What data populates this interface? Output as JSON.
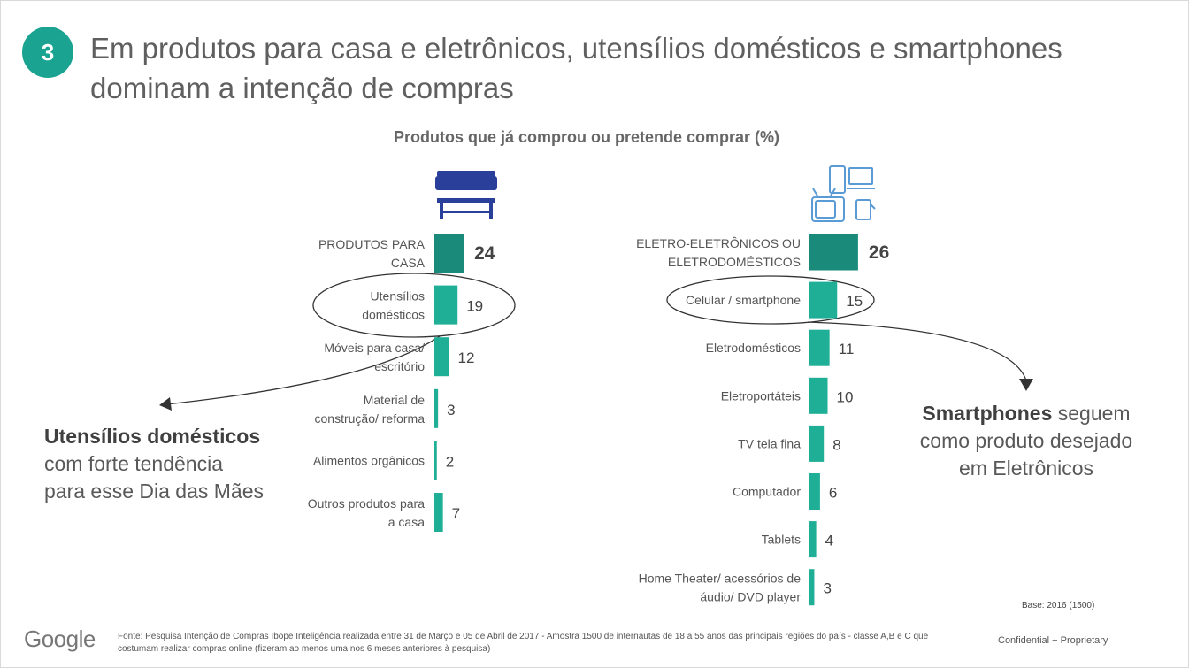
{
  "slide": {
    "number": "3",
    "title_line1": "Em produtos para casa e eletrônicos, utensílios domésticos e smartphones",
    "title_line2": "dominam a intenção de compras",
    "subtitle": "Produtos que já comprou ou pretende comprar (%)"
  },
  "callouts": {
    "left_bold": "Utensílios domésticos",
    "left_line2": "com forte tendência",
    "left_line3": "para esse Dia das Mães",
    "right_bold": "Smartphones",
    "right_rest": " seguem",
    "right_line2": "como produto desejado",
    "right_line3": "em Eletrônicos"
  },
  "footer": {
    "logo": "Google",
    "source_line1": "Fonte: Pesquisa Intenção de Compras Ibope Inteligência realizada entre 31 de Março e 05 de Abril de 2017 - Amostra 1500 de internautas de 18 a 55 anos das principais regiões do país - classe A,B e C que",
    "source_line2": "costumam realizar compras online (fizeram ao menos uma nos 6 meses anteriores à pesquisa)",
    "base": "Base: 2016 (1500)",
    "confidential": "Confidential + Proprietary"
  },
  "colors": {
    "bar_main": "#1a8a7a",
    "bar_secondary": "#1fae96",
    "badge": "#1aa391",
    "sofa_icon": "#2a3f9a",
    "electronics_icon": "#5b9bd5"
  },
  "icons": [
    "sofa-table-icon",
    "electronics-devices-icon"
  ],
  "chart_data": [
    {
      "type": "bar",
      "orientation": "horizontal",
      "categories": [
        "PRODUTOS PARA CASA",
        "Utensílios domésticos",
        "Móveis para casa/ escritório",
        "Material de construção/ reforma",
        "Alimentos orgânicos",
        "Outros produtos para a casa"
      ],
      "label_lines": [
        [
          "PRODUTOS PARA",
          "CASA"
        ],
        [
          "Utensílios",
          "domésticos"
        ],
        [
          "Móveis para casa/",
          "escritório"
        ],
        [
          "Material de",
          "construção/ reforma"
        ],
        [
          "Alimentos orgânicos"
        ],
        [
          "Outros produtos para",
          "a casa"
        ]
      ],
      "values": [
        24,
        19,
        12,
        3,
        2,
        7
      ],
      "highlight": "Utensílios domésticos"
    },
    {
      "type": "bar",
      "orientation": "horizontal",
      "categories": [
        "ELETRO-ELETRÔNICOS OU ELETRODOMÉSTICOS",
        "Celular / smartphone",
        "Eletrodomésticos",
        "Eletroportáteis",
        "TV tela fina",
        "Computador",
        "Tablets",
        "Home Theater/ acessórios de áudio/ DVD player"
      ],
      "label_lines": [
        [
          "ELETRO-ELETRÔNICOS OU",
          "ELETRODOMÉSTICOS"
        ],
        [
          "Celular / smartphone"
        ],
        [
          "Eletrodomésticos"
        ],
        [
          "Eletroportáteis"
        ],
        [
          "TV tela fina"
        ],
        [
          "Computador"
        ],
        [
          "Tablets"
        ],
        [
          "Home Theater/ acessórios de",
          "áudio/ DVD player"
        ]
      ],
      "values": [
        26,
        15,
        11,
        10,
        8,
        6,
        4,
        3
      ],
      "highlight": "Celular / smartphone"
    }
  ]
}
